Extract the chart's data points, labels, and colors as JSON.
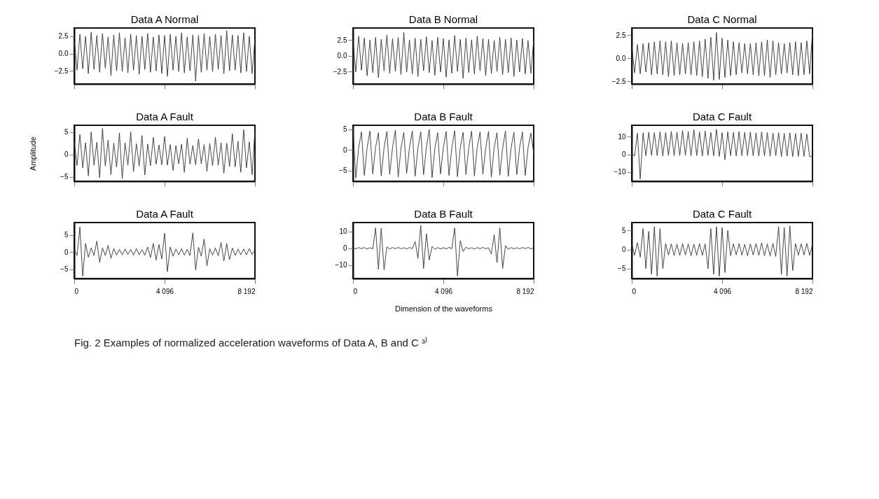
{
  "chart_data": [
    {
      "type": "line",
      "title": "Data A Normal",
      "color": "#333333",
      "xlim": [
        0,
        8192
      ],
      "xticks": [
        0,
        4096,
        8192
      ],
      "ylim": [
        -4.4,
        3.7
      ],
      "yticks": [
        {
          "value": -2.5,
          "label": "−2.5"
        },
        {
          "value": 0,
          "label": "0.0"
        },
        2.5
      ],
      "tick_labels": "y",
      "grid": false,
      "x": [
        0,
        128,
        256,
        384,
        512,
        640,
        768,
        896,
        1024,
        1152,
        1280,
        1408,
        1536,
        1664,
        1792,
        1920,
        2048,
        2176,
        2304,
        2432,
        2560,
        2688,
        2816,
        2944,
        3072,
        3200,
        3328,
        3456,
        3584,
        3712,
        3840,
        3968,
        4096,
        4224,
        4352,
        4480,
        4608,
        4736,
        4864,
        4992,
        5120,
        5248,
        5376,
        5504,
        5632,
        5760,
        5888,
        6016,
        6144,
        6272,
        6400,
        6528,
        6656,
        6784,
        6912,
        7040,
        7168,
        7296,
        7424,
        7552,
        7680,
        7808,
        7936,
        8064,
        8192
      ],
      "values": [
        2.0,
        -2.4,
        2.8,
        -2.2,
        2.5,
        -2.9,
        3.1,
        -2.3,
        2.6,
        -2.7,
        2.9,
        -2.1,
        2.4,
        -3.2,
        2.7,
        -2.5,
        3.0,
        -2.6,
        2.3,
        -2.8,
        2.8,
        -2.4,
        2.6,
        -3.0,
        2.5,
        -2.3,
        2.9,
        -2.7,
        2.4,
        -2.5,
        2.7,
        -2.9,
        2.6,
        -3.3,
        2.8,
        -2.4,
        2.5,
        -2.6,
        3.0,
        -2.8,
        2.4,
        -2.5,
        2.7,
        -4.0,
        2.6,
        -2.7,
        2.9,
        -2.4,
        2.5,
        -2.6,
        2.8,
        -2.3,
        2.6,
        -2.9,
        3.3,
        -2.5,
        2.7,
        -2.4,
        2.6,
        -2.8,
        3.0,
        -2.6,
        2.5,
        -2.9,
        2.2
      ]
    },
    {
      "type": "line",
      "title": "Data B Normal",
      "color": "#333333",
      "xlim": [
        0,
        8192
      ],
      "xticks": [
        0,
        4096,
        8192
      ],
      "ylim": [
        -4.5,
        4.4
      ],
      "yticks": [
        {
          "value": -2.5,
          "label": "−2.5"
        },
        {
          "value": 0,
          "label": "0.0"
        },
        2.5
      ],
      "tick_labels": "y",
      "grid": false,
      "x": [
        0,
        128,
        256,
        384,
        512,
        640,
        768,
        896,
        1024,
        1152,
        1280,
        1408,
        1536,
        1664,
        1792,
        1920,
        2048,
        2176,
        2304,
        2432,
        2560,
        2688,
        2816,
        2944,
        3072,
        3200,
        3328,
        3456,
        3584,
        3712,
        3840,
        3968,
        4096,
        4224,
        4352,
        4480,
        4608,
        4736,
        4864,
        4992,
        5120,
        5248,
        5376,
        5504,
        5632,
        5760,
        5888,
        6016,
        6144,
        6272,
        6400,
        6528,
        6656,
        6784,
        6912,
        7040,
        7168,
        7296,
        7424,
        7552,
        7680,
        7808,
        7936,
        8064,
        8192
      ],
      "values": [
        2.4,
        -2.6,
        3.1,
        -2.3,
        2.8,
        -3.2,
        2.5,
        -2.7,
        2.9,
        -3.5,
        2.6,
        -2.4,
        3.3,
        -2.8,
        2.7,
        -2.5,
        2.9,
        -3.0,
        3.7,
        -2.6,
        2.5,
        -2.9,
        2.8,
        -3.3,
        2.6,
        -2.4,
        3.0,
        -2.7,
        2.4,
        -3.1,
        2.9,
        -2.6,
        2.7,
        -3.4,
        2.5,
        -2.8,
        3.2,
        -2.5,
        2.6,
        -3.6,
        2.8,
        -2.7,
        2.5,
        -2.9,
        3.1,
        -2.4,
        2.7,
        -3.2,
        2.6,
        -2.8,
        2.4,
        -2.5,
        2.9,
        -3.0,
        2.6,
        -2.7,
        2.8,
        -3.3,
        2.5,
        -2.6,
        2.7,
        -2.9,
        2.4,
        -2.8,
        2.6
      ]
    },
    {
      "type": "line",
      "title": "Data C Normal",
      "color": "#333333",
      "xlim": [
        0,
        8192
      ],
      "xticks": [
        0,
        4096,
        8192
      ],
      "ylim": [
        -2.8,
        3.3
      ],
      "yticks": [
        {
          "value": -2.5,
          "label": "−2.5"
        },
        {
          "value": 0,
          "label": "0.0"
        },
        2.5
      ],
      "tick_labels": "y",
      "grid": false,
      "x": [
        0,
        128,
        256,
        384,
        512,
        640,
        768,
        896,
        1024,
        1152,
        1280,
        1408,
        1536,
        1664,
        1792,
        1920,
        2048,
        2176,
        2304,
        2432,
        2560,
        2688,
        2816,
        2944,
        3072,
        3200,
        3328,
        3456,
        3584,
        3712,
        3840,
        3968,
        4096,
        4224,
        4352,
        4480,
        4608,
        4736,
        4864,
        4992,
        5120,
        5248,
        5376,
        5504,
        5632,
        5760,
        5888,
        6016,
        6144,
        6272,
        6400,
        6528,
        6656,
        6784,
        6912,
        7040,
        7168,
        7296,
        7424,
        7552,
        7680,
        7808,
        7936,
        8064,
        8192
      ],
      "values": [
        1.4,
        -1.6,
        1.5,
        -1.7,
        1.6,
        -1.5,
        1.7,
        -1.8,
        1.8,
        -1.7,
        1.9,
        -1.8,
        1.8,
        -2.0,
        1.9,
        -1.9,
        1.7,
        -1.8,
        1.6,
        -1.7,
        1.7,
        -1.8,
        1.8,
        -1.9,
        1.9,
        -2.0,
        2.1,
        -2.2,
        2.3,
        -2.4,
        2.8,
        -2.3,
        2.2,
        -2.1,
        2.0,
        -1.9,
        1.8,
        -1.8,
        1.7,
        -1.6,
        1.6,
        -1.7,
        1.6,
        -1.8,
        1.7,
        -1.9,
        1.8,
        -1.9,
        2.0,
        -2.1,
        1.9,
        -1.8,
        1.7,
        -1.7,
        1.6,
        -1.6,
        1.7,
        -1.8,
        1.8,
        -1.9,
        1.7,
        -1.8,
        1.9,
        -1.7,
        2.9
      ]
    },
    {
      "type": "line",
      "title": "Data A Fault",
      "ylabel": "Amplitude",
      "color": "#333333",
      "xlim": [
        0,
        8192
      ],
      "xticks": [
        0,
        4096,
        8192
      ],
      "ylim": [
        -6.0,
        6.5
      ],
      "yticks": [
        {
          "value": -5,
          "label": "−5"
        },
        0,
        5
      ],
      "tick_labels": "y",
      "grid": false,
      "x": [
        0,
        128,
        256,
        384,
        512,
        640,
        768,
        896,
        1024,
        1152,
        1280,
        1408,
        1536,
        1664,
        1792,
        1920,
        2048,
        2176,
        2304,
        2432,
        2560,
        2688,
        2816,
        2944,
        3072,
        3200,
        3328,
        3456,
        3584,
        3712,
        3840,
        3968,
        4096,
        4224,
        4352,
        4480,
        4608,
        4736,
        4864,
        4992,
        5120,
        5248,
        5376,
        5504,
        5632,
        5760,
        5888,
        6016,
        6144,
        6272,
        6400,
        6528,
        6656,
        6784,
        6912,
        7040,
        7168,
        7296,
        7424,
        7552,
        7680,
        7808,
        7936,
        8064,
        8192
      ],
      "values": [
        2.8,
        -2.5,
        4.5,
        -3.0,
        2.6,
        -4.8,
        5.0,
        -2.4,
        2.7,
        -5.2,
        5.8,
        -2.6,
        3.2,
        -4.5,
        2.5,
        -2.8,
        4.8,
        -5.4,
        2.6,
        -2.4,
        5.0,
        -3.8,
        2.4,
        -2.6,
        4.2,
        -4.6,
        2.3,
        -2.5,
        3.8,
        -2.2,
        2.1,
        -2.3,
        4.0,
        -2.4,
        2.2,
        -3.6,
        2.0,
        -2.1,
        2.3,
        -4.0,
        3.6,
        -2.2,
        2.0,
        -2.3,
        3.4,
        -2.1,
        2.2,
        -3.8,
        2.4,
        -2.5,
        3.8,
        -2.4,
        2.6,
        -4.2,
        2.5,
        -2.7,
        4.6,
        -2.8,
        2.9,
        -4.0,
        5.5,
        -3.0,
        2.8,
        -4.5,
        5.6
      ]
    },
    {
      "type": "line",
      "title": "Data B Fault",
      "color": "#333333",
      "xlim": [
        0,
        8192
      ],
      "xticks": [
        0,
        4096,
        8192
      ],
      "ylim": [
        -7.6,
        6.0
      ],
      "yticks": [
        {
          "value": -5,
          "label": "−5"
        },
        0,
        5
      ],
      "tick_labels": "y",
      "grid": false,
      "x": [
        0,
        128,
        256,
        384,
        512,
        640,
        768,
        896,
        1024,
        1152,
        1280,
        1408,
        1536,
        1664,
        1792,
        1920,
        2048,
        2176,
        2304,
        2432,
        2560,
        2688,
        2816,
        2944,
        3072,
        3200,
        3328,
        3456,
        3584,
        3712,
        3840,
        3968,
        4096,
        4224,
        4352,
        4480,
        4608,
        4736,
        4864,
        4992,
        5120,
        5248,
        5376,
        5504,
        5632,
        5760,
        5888,
        6016,
        6144,
        6272,
        6400,
        6528,
        6656,
        6784,
        6912,
        7040,
        7168,
        7296,
        7424,
        7552,
        7680,
        7808,
        7936,
        8064,
        8192
      ],
      "values": [
        5.5,
        -6.8,
        0.6,
        4.4,
        -6.2,
        0.5,
        4.6,
        -5.8,
        0.6,
        4.2,
        -6.3,
        0.5,
        4.5,
        -5.9,
        0.6,
        4.8,
        -6.6,
        0.5,
        4.3,
        -5.7,
        0.6,
        4.6,
        -6.4,
        0.5,
        4.4,
        -6.0,
        0.7,
        5.0,
        -6.7,
        0.5,
        4.2,
        -5.8,
        0.6,
        4.5,
        -6.2,
        0.5,
        4.7,
        -6.5,
        0.6,
        4.3,
        -6.0,
        0.5,
        4.6,
        -6.3,
        0.6,
        4.4,
        -5.9,
        0.5,
        4.5,
        -6.6,
        0.6,
        4.2,
        -6.1,
        0.5,
        4.6,
        -6.4,
        0.6,
        4.3,
        -6.0,
        0.5,
        4.4,
        -6.2,
        0.6,
        4.1,
        -0.8
      ]
    },
    {
      "type": "line",
      "title": "Data C Fault",
      "color": "#333333",
      "xlim": [
        0,
        8192
      ],
      "xticks": [
        0,
        4096,
        8192
      ],
      "ylim": [
        -15.3,
        16.5
      ],
      "yticks": [
        {
          "value": -10,
          "label": "−10"
        },
        0,
        10
      ],
      "tick_labels": "y",
      "grid": false,
      "x": [
        0,
        128,
        256,
        384,
        512,
        640,
        768,
        896,
        1024,
        1152,
        1280,
        1408,
        1536,
        1664,
        1792,
        1920,
        2048,
        2176,
        2304,
        2432,
        2560,
        2688,
        2816,
        2944,
        3072,
        3200,
        3328,
        3456,
        3584,
        3712,
        3840,
        3968,
        4096,
        4224,
        4352,
        4480,
        4608,
        4736,
        4864,
        4992,
        5120,
        5248,
        5376,
        5504,
        5632,
        5760,
        5888,
        6016,
        6144,
        6272,
        6400,
        6528,
        6656,
        6784,
        6912,
        7040,
        7168,
        7296,
        7424,
        7552,
        7680,
        7808,
        7936,
        8064,
        8192
      ],
      "values": [
        0.5,
        -1.0,
        12.0,
        -14.0,
        12.2,
        -0.8,
        12.5,
        -0.6,
        12.3,
        -0.7,
        12.8,
        -0.9,
        12.4,
        -0.6,
        13.0,
        -0.8,
        12.6,
        -0.7,
        13.5,
        -0.6,
        12.9,
        -0.8,
        14.0,
        -0.7,
        12.7,
        -0.9,
        13.2,
        -0.6,
        12.5,
        -0.8,
        14.2,
        -1.2,
        12.3,
        -3.0,
        12.8,
        -0.7,
        12.4,
        -0.9,
        12.9,
        -0.8,
        12.5,
        -0.7,
        12.6,
        -0.8,
        12.2,
        -1.0,
        12.7,
        -0.9,
        12.4,
        -1.1,
        12.1,
        -0.8,
        12.3,
        -1.2,
        11.9,
        -1.0,
        12.2,
        -1.3,
        11.8,
        -1.1,
        12.0,
        -1.2,
        11.5,
        -1.4,
        -0.9
      ]
    },
    {
      "type": "line",
      "title": "Data A Fault",
      "color": "#333333",
      "xlim": [
        0,
        8192
      ],
      "xticks": [
        0,
        {
          "value": 4096,
          "label": "4 096"
        },
        {
          "value": 8192,
          "label": "8 192"
        }
      ],
      "ylim": [
        -7.7,
        8.6
      ],
      "yticks": [
        {
          "value": -5,
          "label": "−5"
        },
        0,
        5
      ],
      "grid": false,
      "x": [
        0,
        128,
        256,
        384,
        512,
        640,
        768,
        896,
        1024,
        1152,
        1280,
        1408,
        1536,
        1664,
        1792,
        1920,
        2048,
        2176,
        2304,
        2432,
        2560,
        2688,
        2816,
        2944,
        3072,
        3200,
        3328,
        3456,
        3584,
        3712,
        3840,
        3968,
        4096,
        4224,
        4352,
        4480,
        4608,
        4736,
        4864,
        4992,
        5120,
        5248,
        5376,
        5504,
        5632,
        5760,
        5888,
        6016,
        6144,
        6272,
        6400,
        6528,
        6656,
        6784,
        6912,
        7040,
        7168,
        7296,
        7424,
        7552,
        7680,
        7808,
        7936,
        8064,
        8192
      ],
      "values": [
        0.8,
        -1.0,
        7.3,
        -7.0,
        2.5,
        -1.5,
        1.2,
        -1.0,
        3.2,
        -3.0,
        1.2,
        -1.0,
        2.0,
        -1.8,
        1.0,
        -0.9,
        0.8,
        -0.8,
        0.9,
        -0.7,
        0.8,
        -0.9,
        1.0,
        -0.8,
        0.7,
        -0.9,
        1.5,
        -1.6,
        2.5,
        -2.3,
        2.2,
        -2.0,
        5.5,
        -5.7,
        1.5,
        -1.2,
        0.9,
        -0.8,
        1.0,
        -0.9,
        0.8,
        -1.0,
        5.6,
        -5.2,
        1.4,
        -1.2,
        3.8,
        -4.0,
        1.0,
        -0.9,
        1.2,
        -1.1,
        2.8,
        -2.6,
        2.5,
        -2.2,
        1.2,
        -1.0,
        0.9,
        -0.8,
        0.9,
        -0.8,
        1.0,
        -0.7,
        0.6
      ]
    },
    {
      "type": "line",
      "title": "Data B Fault",
      "xlabel": "Dimension of the waveforms",
      "color": "#333333",
      "xlim": [
        0,
        8192
      ],
      "xticks": [
        0,
        {
          "value": 4096,
          "label": "4 096"
        },
        {
          "value": 8192,
          "label": "8 192"
        }
      ],
      "ylim": [
        -18,
        15.2
      ],
      "yticks": [
        {
          "value": -10,
          "label": "−10"
        },
        0,
        10
      ],
      "grid": false,
      "annotations": [
        "Fig. 2   Examples of normalized acceleration waveforms of Data A, B and C ³⁾"
      ],
      "x": [
        0,
        128,
        256,
        384,
        512,
        640,
        768,
        896,
        1024,
        1152,
        1280,
        1408,
        1536,
        1664,
        1792,
        1920,
        2048,
        2176,
        2304,
        2432,
        2560,
        2688,
        2816,
        2944,
        3072,
        3200,
        3328,
        3456,
        3584,
        3712,
        3840,
        3968,
        4096,
        4224,
        4352,
        4480,
        4608,
        4736,
        4864,
        4992,
        5120,
        5248,
        5376,
        5504,
        5632,
        5760,
        5888,
        6016,
        6144,
        6272,
        6400,
        6528,
        6656,
        6784,
        6912,
        7040,
        7168,
        7296,
        7424,
        7552,
        7680,
        7808,
        7936,
        8064,
        8192
      ],
      "values": [
        0.3,
        -0.4,
        0.4,
        -0.3,
        0.4,
        -0.5,
        0.3,
        -0.4,
        12.0,
        -12.5,
        11.8,
        -12.8,
        0.8,
        -0.5,
        0.4,
        -0.3,
        0.5,
        -0.4,
        0.3,
        -0.5,
        0.4,
        -0.3,
        4.0,
        -6.0,
        13.5,
        -12.0,
        8.5,
        -7.0,
        1.0,
        -0.6,
        0.4,
        -0.5,
        0.3,
        -0.4,
        0.5,
        -0.3,
        12.0,
        -16.5,
        4.5,
        -2.0,
        0.6,
        -0.4,
        0.3,
        -0.5,
        0.4,
        -0.3,
        0.5,
        -0.4,
        0.3,
        -3.5,
        8.0,
        -8.5,
        12.0,
        -12.0,
        1.5,
        -0.6,
        0.4,
        -0.5,
        0.3,
        -0.4,
        0.4,
        -0.3,
        0.5,
        -0.4,
        0.3
      ]
    },
    {
      "type": "line",
      "title": "Data C Fault",
      "color": "#333333",
      "xlim": [
        0,
        8192
      ],
      "xticks": [
        0,
        {
          "value": 4096,
          "label": "4 096"
        },
        {
          "value": 8192,
          "label": "8 192"
        }
      ],
      "ylim": [
        -7.6,
        7.1
      ],
      "yticks": [
        {
          "value": -5,
          "label": "−5"
        },
        0,
        5
      ],
      "grid": false,
      "x": [
        0,
        128,
        256,
        384,
        512,
        640,
        768,
        896,
        1024,
        1152,
        1280,
        1408,
        1536,
        1664,
        1792,
        1920,
        2048,
        2176,
        2304,
        2432,
        2560,
        2688,
        2816,
        2944,
        3072,
        3200,
        3328,
        3456,
        3584,
        3712,
        3840,
        3968,
        4096,
        4224,
        4352,
        4480,
        4608,
        4736,
        4864,
        4992,
        5120,
        5248,
        5376,
        5504,
        5632,
        5760,
        5888,
        6016,
        6144,
        6272,
        6400,
        6528,
        6656,
        6784,
        6912,
        7040,
        7168,
        7296,
        7424,
        7552,
        7680,
        7808,
        7936,
        8064,
        8192
      ],
      "values": [
        1.6,
        -1.5,
        1.8,
        -2.0,
        5.5,
        -5.0,
        4.8,
        -6.5,
        6.0,
        -7.0,
        5.5,
        -5.0,
        1.6,
        -1.4,
        1.5,
        -1.6,
        1.4,
        -1.5,
        1.6,
        -1.4,
        1.5,
        -1.6,
        1.4,
        -1.5,
        1.6,
        -1.5,
        1.5,
        -5.0,
        5.5,
        -6.5,
        6.0,
        -7.0,
        5.8,
        -6.0,
        5.0,
        -1.6,
        1.5,
        -1.4,
        1.6,
        -1.5,
        1.4,
        -1.6,
        1.5,
        -1.4,
        1.6,
        -1.5,
        1.8,
        -1.6,
        1.5,
        -1.7,
        1.6,
        -1.8,
        6.0,
        -6.5,
        5.8,
        -7.0,
        6.2,
        -5.5,
        1.6,
        -1.5,
        1.5,
        -1.4,
        1.6,
        -1.5,
        1.4
      ]
    }
  ]
}
